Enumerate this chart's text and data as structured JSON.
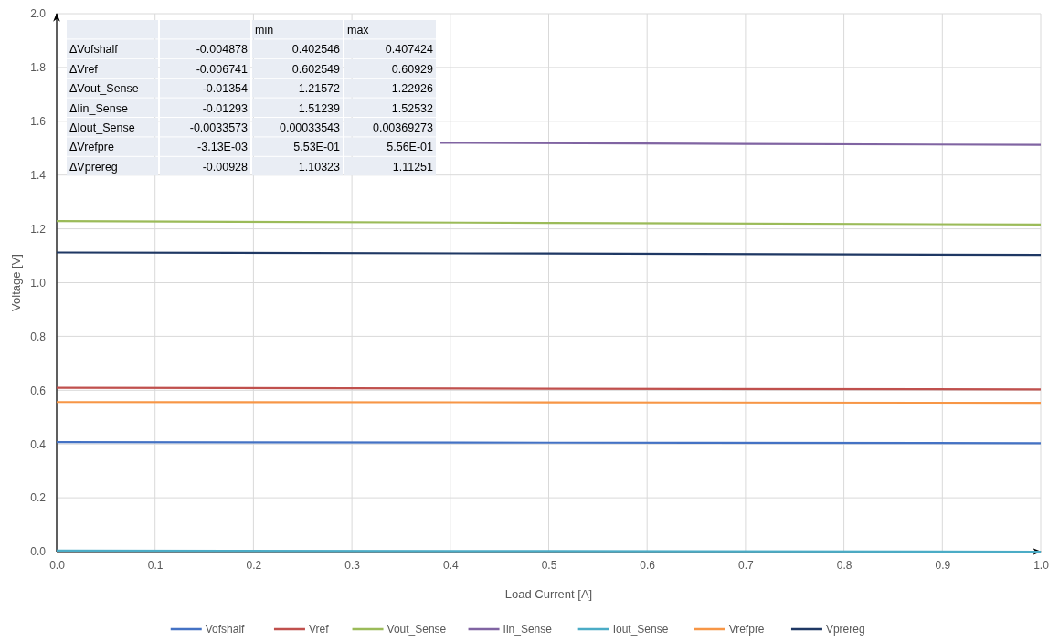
{
  "chart_data": {
    "type": "line",
    "xlabel": "Load Current [A]",
    "ylabel": "Voltage [V]",
    "x": [
      0,
      0.5,
      1
    ],
    "xlim": [
      0,
      1
    ],
    "xticks": [
      {
        "value": 0,
        "label": "0.0"
      },
      {
        "value": 0.1,
        "label": "0.1"
      },
      {
        "value": 0.2,
        "label": "0.2"
      },
      {
        "value": 0.3,
        "label": "0.3"
      },
      {
        "value": 0.4,
        "label": "0.4"
      },
      {
        "value": 0.5,
        "label": "0.5"
      },
      {
        "value": 0.6,
        "label": "0.6"
      },
      {
        "value": 0.7,
        "label": "0.7"
      },
      {
        "value": 0.8,
        "label": "0.8"
      },
      {
        "value": 0.9,
        "label": "0.9"
      },
      {
        "value": 1,
        "label": "1.0"
      }
    ],
    "ylim": [
      0,
      2
    ],
    "yticks": [
      {
        "value": 0,
        "label": "0.0"
      },
      {
        "value": 0.2,
        "label": "0.2"
      },
      {
        "value": 0.4,
        "label": "0.4"
      },
      {
        "value": 0.6,
        "label": "0.6"
      },
      {
        "value": 0.8,
        "label": "0.8"
      },
      {
        "value": 1,
        "label": "1.0"
      },
      {
        "value": 1.2,
        "label": "1.2"
      },
      {
        "value": 1.4,
        "label": "1.4"
      },
      {
        "value": 1.6,
        "label": "1.6"
      },
      {
        "value": 1.8,
        "label": "1.8"
      },
      {
        "value": 2,
        "label": "2.0"
      }
    ],
    "grid": true,
    "legend": "bottom",
    "marker": "none",
    "line_style": "solid",
    "series": [
      {
        "name": "Vofshalf",
        "color": "#4472c4",
        "values": [
          0.407,
          0.405,
          0.403
        ]
      },
      {
        "name": "Vref",
        "color": "#c0504d",
        "values": [
          0.609,
          0.606,
          0.603
        ]
      },
      {
        "name": "Vout_Sense",
        "color": "#9bbb59",
        "values": [
          1.229,
          1.222,
          1.216
        ]
      },
      {
        "name": "Iin_Sense",
        "color": "#8064a2",
        "x": [
          0.39,
          0.7,
          1
        ],
        "values": [
          1.52,
          1.516,
          1.512
        ]
      },
      {
        "name": "Iout_Sense",
        "color": "#4bacc6",
        "values": [
          0.004,
          0.002,
          0
        ]
      },
      {
        "name": "Vrefpre",
        "color": "#f79646",
        "values": [
          0.556,
          0.555,
          0.553
        ]
      },
      {
        "name": "Vprereg",
        "color": "#1f3864",
        "values": [
          1.112,
          1.108,
          1.103
        ]
      }
    ],
    "annotations": [
      "min",
      "max",
      "ΔVofshalf",
      "-0.004878",
      "0.402546",
      "0.407424",
      "ΔVref",
      "-0.006741",
      "0.602549",
      "0.60929",
      "ΔVout_Sense",
      "-0.01354",
      "1.21572",
      "1.22926",
      "ΔIin_Sense",
      "-0.01293",
      "1.51239",
      "1.52532",
      "ΔIout_Sense",
      "-0.0033573",
      "0.00033543",
      "0.00369273",
      "ΔVrefpre",
      "-3.13E-03",
      "5.53E-01",
      "5.56E-01",
      "ΔVprereg",
      "-0.00928",
      "1.10323",
      "1.11251"
    ]
  }
}
